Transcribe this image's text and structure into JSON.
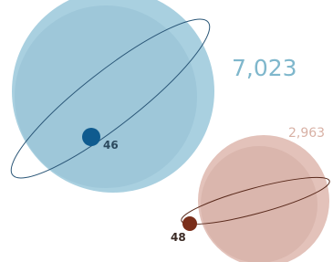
{
  "planets": [
    {
      "value": "7,023",
      "moon_value": "46"
    },
    {
      "value": "2,963",
      "moon_value": "48"
    }
  ]
}
